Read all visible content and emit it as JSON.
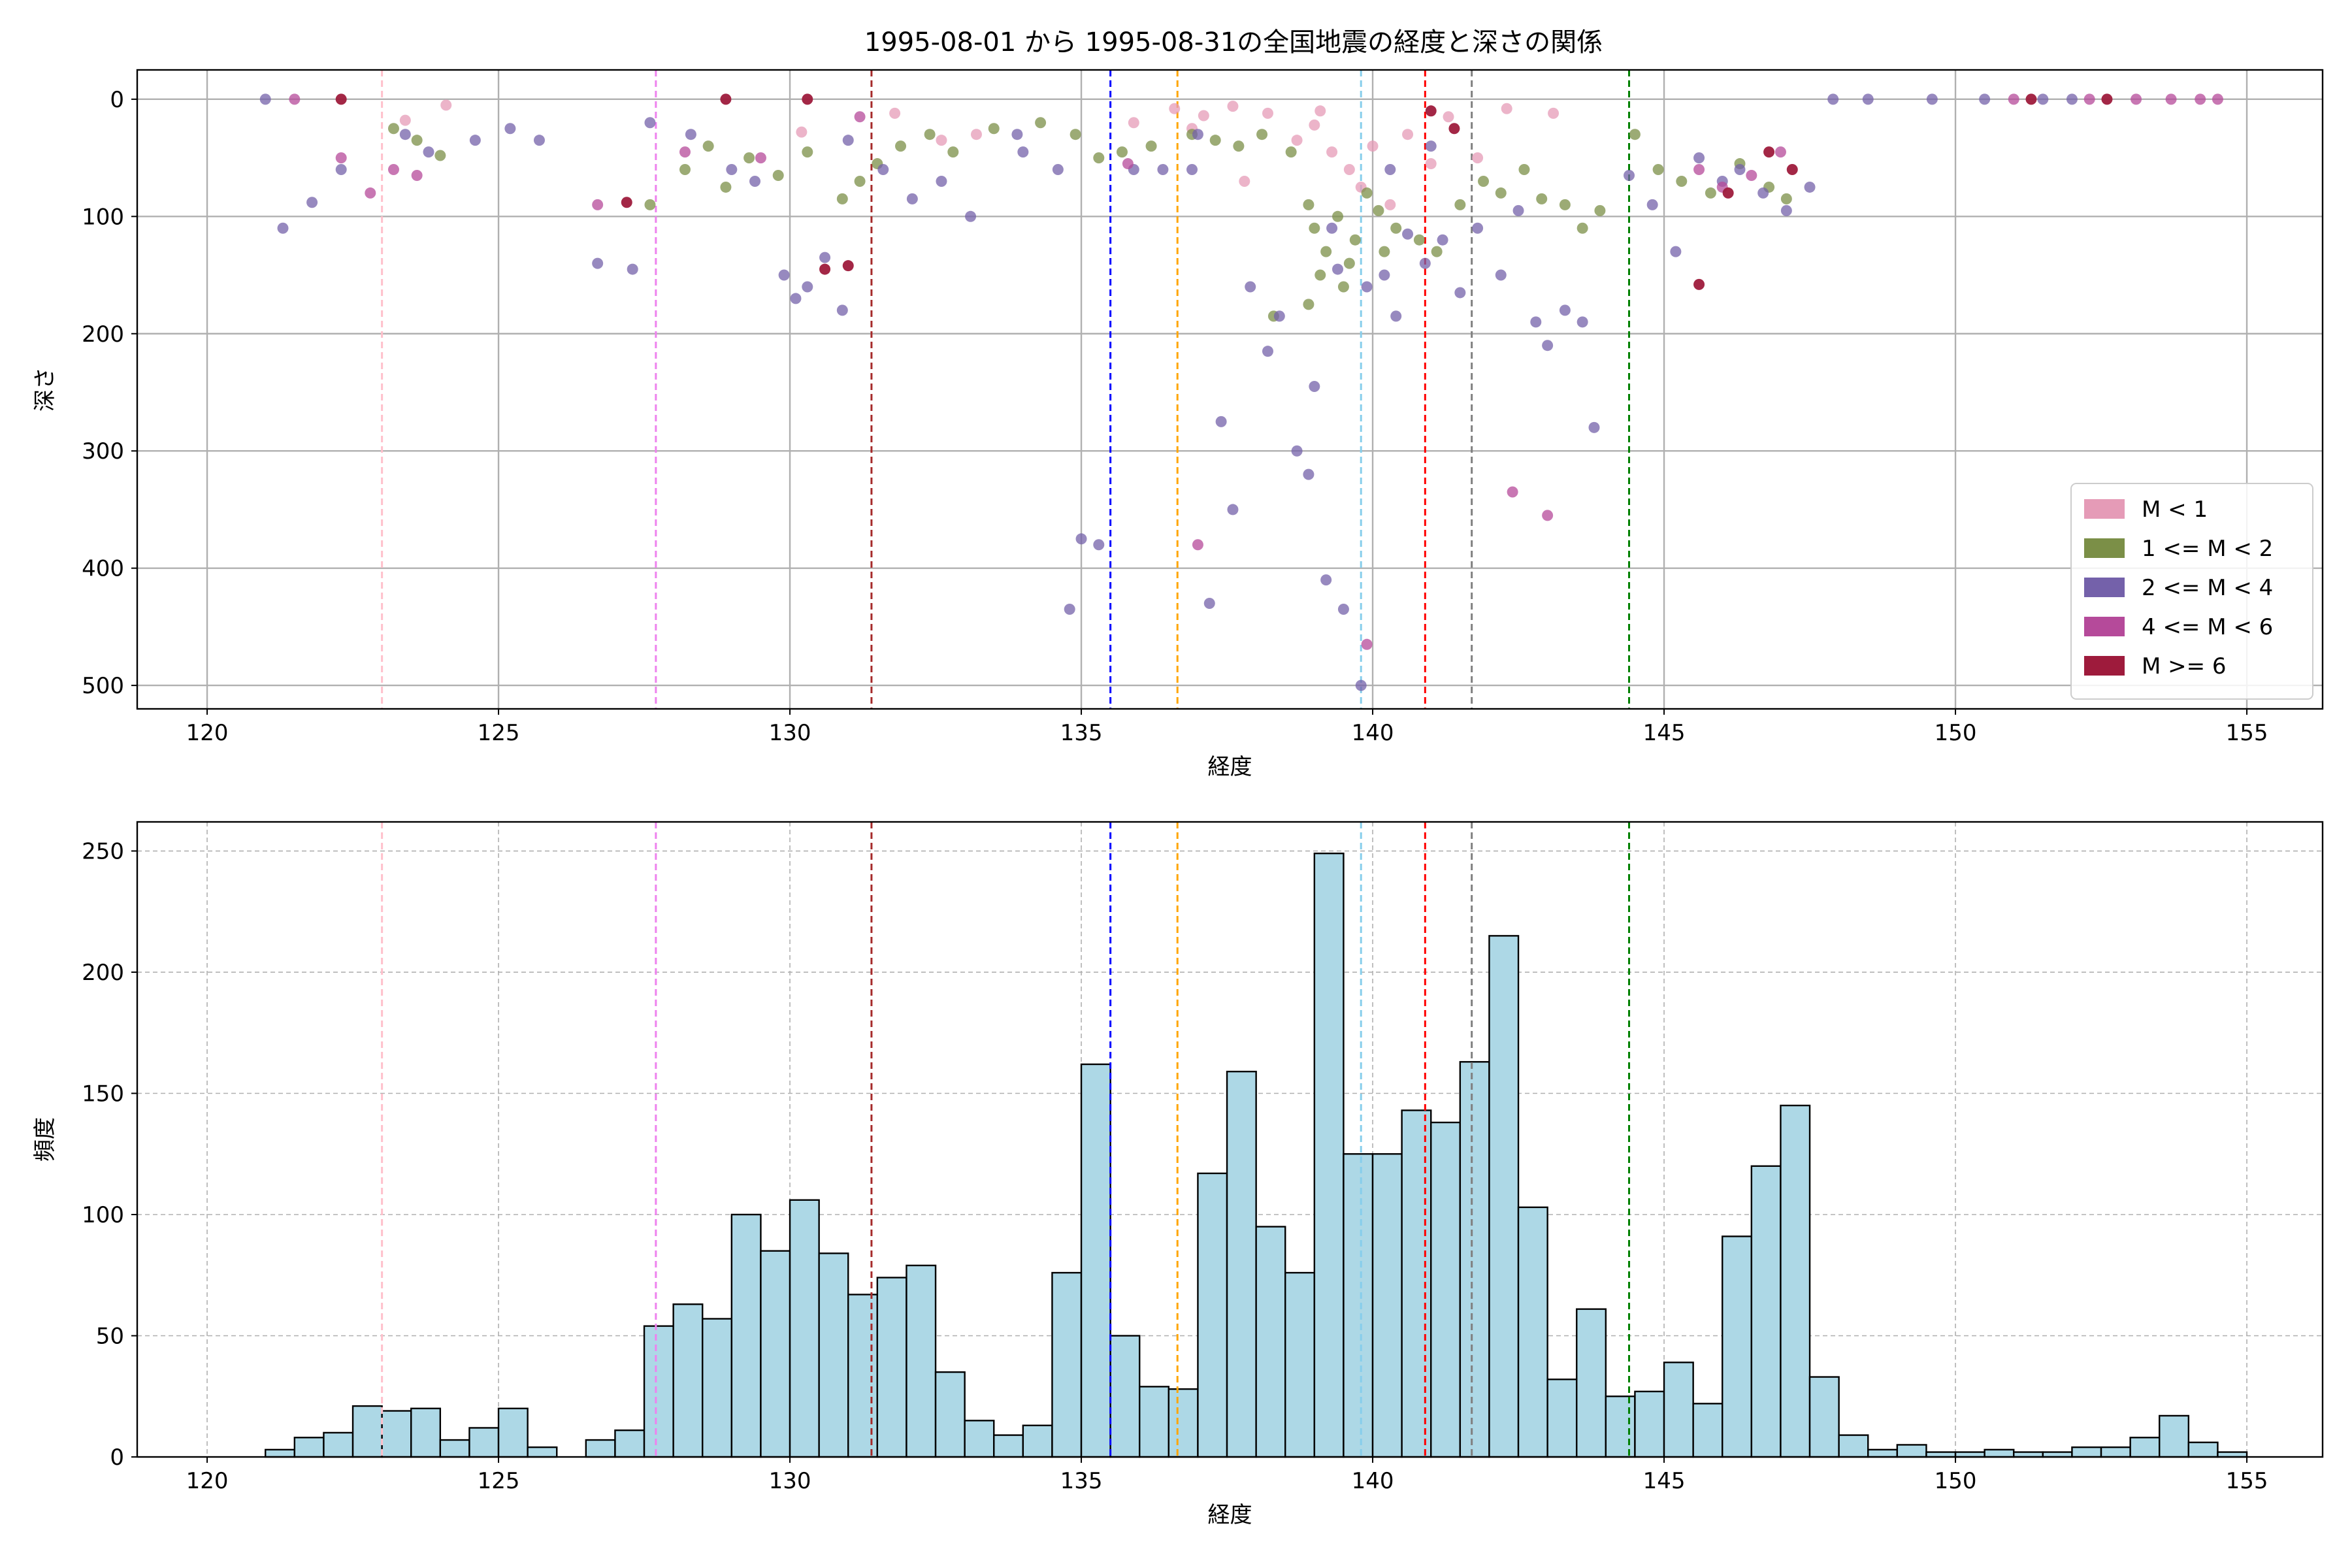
{
  "figure": {
    "title": "1995-08-01 から 1995-08-31の全国地震の経度と深さの関係"
  },
  "chart_data": [
    {
      "type": "scatter",
      "title": "1995-08-01 から 1995-08-31の全国地震の経度と深さの関係",
      "xlabel": "経度",
      "ylabel": "深さ",
      "xlim": [
        118.8,
        156.3
      ],
      "ylim": [
        520,
        -25
      ],
      "y_inverted": true,
      "x_ticks": [
        120,
        125,
        130,
        135,
        140,
        145,
        150,
        155
      ],
      "y_ticks": [
        0,
        100,
        200,
        300,
        400,
        500
      ],
      "grid": true,
      "legend_position": "lower-right",
      "legend": [
        {
          "label": "M < 1",
          "color": "#e59bb7"
        },
        {
          "label": "1 <= M < 2",
          "color": "#7b8f47"
        },
        {
          "label": "2 <= M < 4",
          "color": "#7461aa"
        },
        {
          "label": "4 <= M < 6",
          "color": "#b54a9a"
        },
        {
          "label": "M >= 6",
          "color": "#9e1b3c"
        }
      ],
      "reference_lines": [
        {
          "x": 123.0,
          "color": "pink"
        },
        {
          "x": 127.7,
          "color": "violet"
        },
        {
          "x": 131.4,
          "color": "brown"
        },
        {
          "x": 135.5,
          "color": "blue"
        },
        {
          "x": 136.65,
          "color": "orange"
        },
        {
          "x": 139.8,
          "color": "skyblue"
        },
        {
          "x": 140.9,
          "color": "red"
        },
        {
          "x": 141.7,
          "color": "gray"
        },
        {
          "x": 144.4,
          "color": "green"
        }
      ],
      "series": [
        {
          "name": "M < 1",
          "points": [
            [
              123.4,
              18
            ],
            [
              124.1,
              5
            ],
            [
              130.2,
              28
            ],
            [
              131.8,
              12
            ],
            [
              132.6,
              35
            ],
            [
              133.2,
              30
            ],
            [
              135.9,
              20
            ],
            [
              136.6,
              8
            ],
            [
              137.1,
              14
            ],
            [
              137.6,
              6
            ],
            [
              138.2,
              12
            ],
            [
              138.7,
              35
            ],
            [
              139.0,
              22
            ],
            [
              139.3,
              45
            ],
            [
              139.6,
              60
            ],
            [
              139.8,
              75
            ],
            [
              140.0,
              40
            ],
            [
              140.3,
              90
            ],
            [
              140.6,
              30
            ],
            [
              141.0,
              55
            ],
            [
              141.3,
              15
            ],
            [
              141.8,
              50
            ],
            [
              137.8,
              70
            ],
            [
              139.1,
              10
            ],
            [
              136.9,
              25
            ],
            [
              142.3,
              8
            ],
            [
              143.1,
              12
            ]
          ]
        },
        {
          "name": "1 <= M < 2",
          "points": [
            [
              123.2,
              25
            ],
            [
              123.6,
              35
            ],
            [
              124.0,
              48
            ],
            [
              127.6,
              90
            ],
            [
              128.2,
              60
            ],
            [
              128.6,
              40
            ],
            [
              128.9,
              75
            ],
            [
              129.3,
              50
            ],
            [
              129.8,
              65
            ],
            [
              130.3,
              45
            ],
            [
              130.9,
              85
            ],
            [
              131.2,
              70
            ],
            [
              131.5,
              55
            ],
            [
              131.9,
              40
            ],
            [
              132.4,
              30
            ],
            [
              132.8,
              45
            ],
            [
              133.5,
              25
            ],
            [
              134.3,
              20
            ],
            [
              134.9,
              30
            ],
            [
              135.3,
              50
            ],
            [
              135.7,
              45
            ],
            [
              136.2,
              40
            ],
            [
              136.9,
              30
            ],
            [
              137.3,
              35
            ],
            [
              137.7,
              40
            ],
            [
              138.1,
              30
            ],
            [
              138.6,
              45
            ],
            [
              138.9,
              90
            ],
            [
              139.0,
              110
            ],
            [
              139.2,
              130
            ],
            [
              139.4,
              100
            ],
            [
              139.5,
              160
            ],
            [
              139.7,
              120
            ],
            [
              139.9,
              80
            ],
            [
              140.1,
              95
            ],
            [
              140.4,
              110
            ],
            [
              140.8,
              120
            ],
            [
              141.1,
              130
            ],
            [
              141.5,
              90
            ],
            [
              141.9,
              70
            ],
            [
              142.2,
              80
            ],
            [
              142.6,
              60
            ],
            [
              142.9,
              85
            ],
            [
              143.3,
              90
            ],
            [
              143.6,
              110
            ],
            [
              143.9,
              95
            ],
            [
              144.5,
              30
            ],
            [
              144.9,
              60
            ],
            [
              145.3,
              70
            ],
            [
              145.8,
              80
            ],
            [
              146.3,
              55
            ],
            [
              146.8,
              75
            ],
            [
              147.1,
              85
            ],
            [
              138.3,
              185
            ],
            [
              138.9,
              175
            ],
            [
              139.1,
              150
            ],
            [
              139.6,
              140
            ],
            [
              140.2,
              130
            ]
          ]
        },
        {
          "name": "2 <= M < 4",
          "points": [
            [
              121.0,
              0
            ],
            [
              121.3,
              110
            ],
            [
              121.8,
              88
            ],
            [
              122.3,
              60
            ],
            [
              123.4,
              30
            ],
            [
              123.8,
              45
            ],
            [
              124.6,
              35
            ],
            [
              125.2,
              25
            ],
            [
              125.7,
              35
            ],
            [
              126.7,
              140
            ],
            [
              127.3,
              145
            ],
            [
              127.6,
              20
            ],
            [
              128.3,
              30
            ],
            [
              129.0,
              60
            ],
            [
              129.4,
              70
            ],
            [
              129.9,
              150
            ],
            [
              130.1,
              170
            ],
            [
              130.3,
              160
            ],
            [
              130.6,
              135
            ],
            [
              130.9,
              180
            ],
            [
              131.6,
              60
            ],
            [
              132.1,
              85
            ],
            [
              132.6,
              70
            ],
            [
              133.1,
              100
            ],
            [
              133.9,
              30
            ],
            [
              134.6,
              60
            ],
            [
              134.8,
              435
            ],
            [
              135.0,
              375
            ],
            [
              135.3,
              380
            ],
            [
              135.9,
              60
            ],
            [
              136.4,
              60
            ],
            [
              136.9,
              60
            ],
            [
              137.2,
              430
            ],
            [
              137.4,
              275
            ],
            [
              137.6,
              350
            ],
            [
              137.9,
              160
            ],
            [
              138.2,
              215
            ],
            [
              138.4,
              185
            ],
            [
              138.7,
              300
            ],
            [
              138.9,
              320
            ],
            [
              139.0,
              245
            ],
            [
              139.2,
              410
            ],
            [
              139.3,
              110
            ],
            [
              139.4,
              145
            ],
            [
              139.5,
              435
            ],
            [
              139.8,
              500
            ],
            [
              139.9,
              160
            ],
            [
              140.2,
              150
            ],
            [
              140.4,
              185
            ],
            [
              140.6,
              115
            ],
            [
              140.9,
              140
            ],
            [
              141.2,
              120
            ],
            [
              141.5,
              165
            ],
            [
              141.8,
              110
            ],
            [
              142.2,
              150
            ],
            [
              142.5,
              95
            ],
            [
              142.8,
              190
            ],
            [
              143.0,
              210
            ],
            [
              143.3,
              180
            ],
            [
              143.6,
              190
            ],
            [
              143.8,
              280
            ],
            [
              144.4,
              65
            ],
            [
              144.8,
              90
            ],
            [
              145.2,
              130
            ],
            [
              145.6,
              50
            ],
            [
              146.0,
              70
            ],
            [
              146.3,
              60
            ],
            [
              146.7,
              80
            ],
            [
              147.1,
              95
            ],
            [
              147.5,
              75
            ],
            [
              147.9,
              0
            ],
            [
              148.5,
              0
            ],
            [
              149.6,
              0
            ],
            [
              150.5,
              0
            ],
            [
              151.5,
              0
            ],
            [
              152.0,
              0
            ],
            [
              141.0,
              40
            ],
            [
              140.3,
              60
            ],
            [
              137.0,
              30
            ],
            [
              134.0,
              45
            ],
            [
              131.0,
              35
            ]
          ]
        },
        {
          "name": "4 <= M < 6",
          "points": [
            [
              121.5,
              0
            ],
            [
              122.3,
              50
            ],
            [
              122.8,
              80
            ],
            [
              123.2,
              60
            ],
            [
              123.6,
              65
            ],
            [
              126.7,
              90
            ],
            [
              128.2,
              45
            ],
            [
              129.5,
              50
            ],
            [
              131.2,
              15
            ],
            [
              135.8,
              55
            ],
            [
              137.0,
              380
            ],
            [
              139.9,
              465
            ],
            [
              142.4,
              335
            ],
            [
              143.0,
              355
            ],
            [
              145.6,
              60
            ],
            [
              146.0,
              75
            ],
            [
              146.5,
              65
            ],
            [
              147.0,
              45
            ],
            [
              151.0,
              0
            ],
            [
              152.3,
              0
            ],
            [
              153.1,
              0
            ],
            [
              153.7,
              0
            ],
            [
              154.2,
              0
            ],
            [
              154.5,
              0
            ]
          ]
        },
        {
          "name": "M >= 6",
          "points": [
            [
              122.3,
              0
            ],
            [
              127.2,
              88
            ],
            [
              128.9,
              0
            ],
            [
              130.3,
              0
            ],
            [
              130.6,
              145
            ],
            [
              131.0,
              142
            ],
            [
              141.0,
              10
            ],
            [
              141.4,
              25
            ],
            [
              145.6,
              158
            ],
            [
              146.1,
              80
            ],
            [
              146.8,
              45
            ],
            [
              147.2,
              60
            ],
            [
              151.3,
              0
            ],
            [
              152.6,
              0
            ]
          ]
        }
      ]
    },
    {
      "type": "bar",
      "histogram": true,
      "xlabel": "経度",
      "ylabel": "頻度",
      "xlim": [
        118.8,
        156.3
      ],
      "ylim": [
        0,
        262
      ],
      "x_ticks": [
        120,
        125,
        130,
        135,
        140,
        145,
        150,
        155
      ],
      "y_ticks": [
        0,
        50,
        100,
        150,
        200,
        250
      ],
      "grid": true,
      "bin_start": 121.0,
      "bin_width": 0.5,
      "values": [
        3,
        8,
        10,
        21,
        19,
        20,
        7,
        12,
        20,
        4,
        0,
        7,
        11,
        54,
        63,
        57,
        100,
        85,
        106,
        84,
        67,
        74,
        79,
        35,
        15,
        9,
        13,
        76,
        162,
        50,
        29,
        28,
        117,
        159,
        95,
        76,
        249,
        125,
        125,
        143,
        138,
        163,
        215,
        103,
        32,
        61,
        25,
        27,
        39,
        22,
        91,
        120,
        145,
        33,
        9,
        3,
        5,
        2,
        2,
        3,
        2,
        2,
        4,
        4,
        8,
        17,
        6,
        2
      ],
      "reference_lines": [
        {
          "x": 123.0,
          "color": "pink"
        },
        {
          "x": 127.7,
          "color": "violet"
        },
        {
          "x": 131.4,
          "color": "brown"
        },
        {
          "x": 135.5,
          "color": "blue"
        },
        {
          "x": 136.65,
          "color": "orange"
        },
        {
          "x": 139.8,
          "color": "skyblue"
        },
        {
          "x": 140.9,
          "color": "red"
        },
        {
          "x": 141.7,
          "color": "gray"
        },
        {
          "x": 144.4,
          "color": "green"
        }
      ]
    }
  ]
}
